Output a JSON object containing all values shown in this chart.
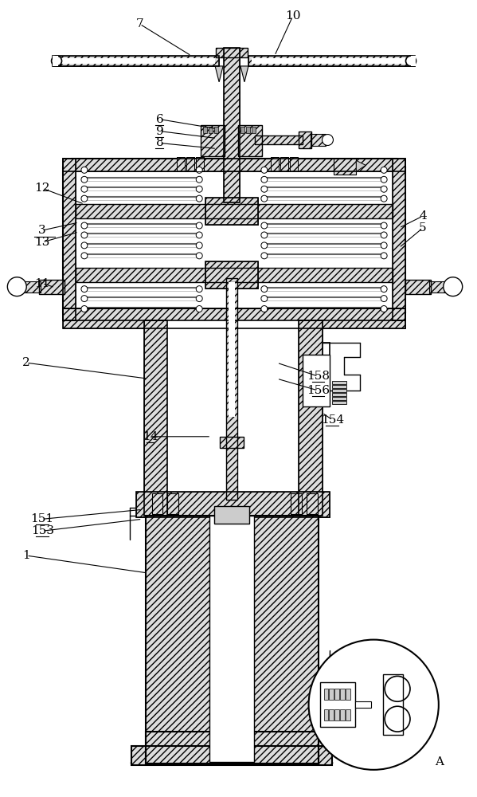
{
  "bg_color": "#ffffff",
  "line_color": "#000000",
  "figsize": [
    5.99,
    10.0
  ],
  "dpi": 100,
  "labels": [
    [
      "7",
      175,
      28,
      240,
      68,
      false
    ],
    [
      "10",
      368,
      18,
      345,
      68,
      false
    ],
    [
      "6",
      200,
      148,
      272,
      160,
      true
    ],
    [
      "9",
      200,
      163,
      272,
      172,
      true
    ],
    [
      "8",
      200,
      178,
      272,
      185,
      true
    ],
    [
      "12",
      52,
      235,
      105,
      255,
      false
    ],
    [
      "3",
      52,
      288,
      98,
      278,
      false
    ],
    [
      "13",
      52,
      303,
      98,
      290,
      false
    ],
    [
      "11",
      52,
      355,
      68,
      360,
      false
    ],
    [
      "2",
      32,
      455,
      185,
      475,
      false
    ],
    [
      "14",
      188,
      548,
      265,
      548,
      true
    ],
    [
      "158",
      400,
      472,
      348,
      455,
      true
    ],
    [
      "156",
      400,
      490,
      348,
      475,
      true
    ],
    [
      "154",
      418,
      527,
      405,
      518,
      true
    ],
    [
      "151",
      52,
      652,
      178,
      640,
      true
    ],
    [
      "153",
      52,
      667,
      178,
      652,
      true
    ],
    [
      "1",
      32,
      698,
      185,
      720,
      false
    ],
    [
      "4",
      532,
      270,
      502,
      285,
      false
    ],
    [
      "5",
      532,
      285,
      502,
      310,
      false
    ],
    [
      "A",
      553,
      958,
      null,
      null,
      false
    ]
  ]
}
